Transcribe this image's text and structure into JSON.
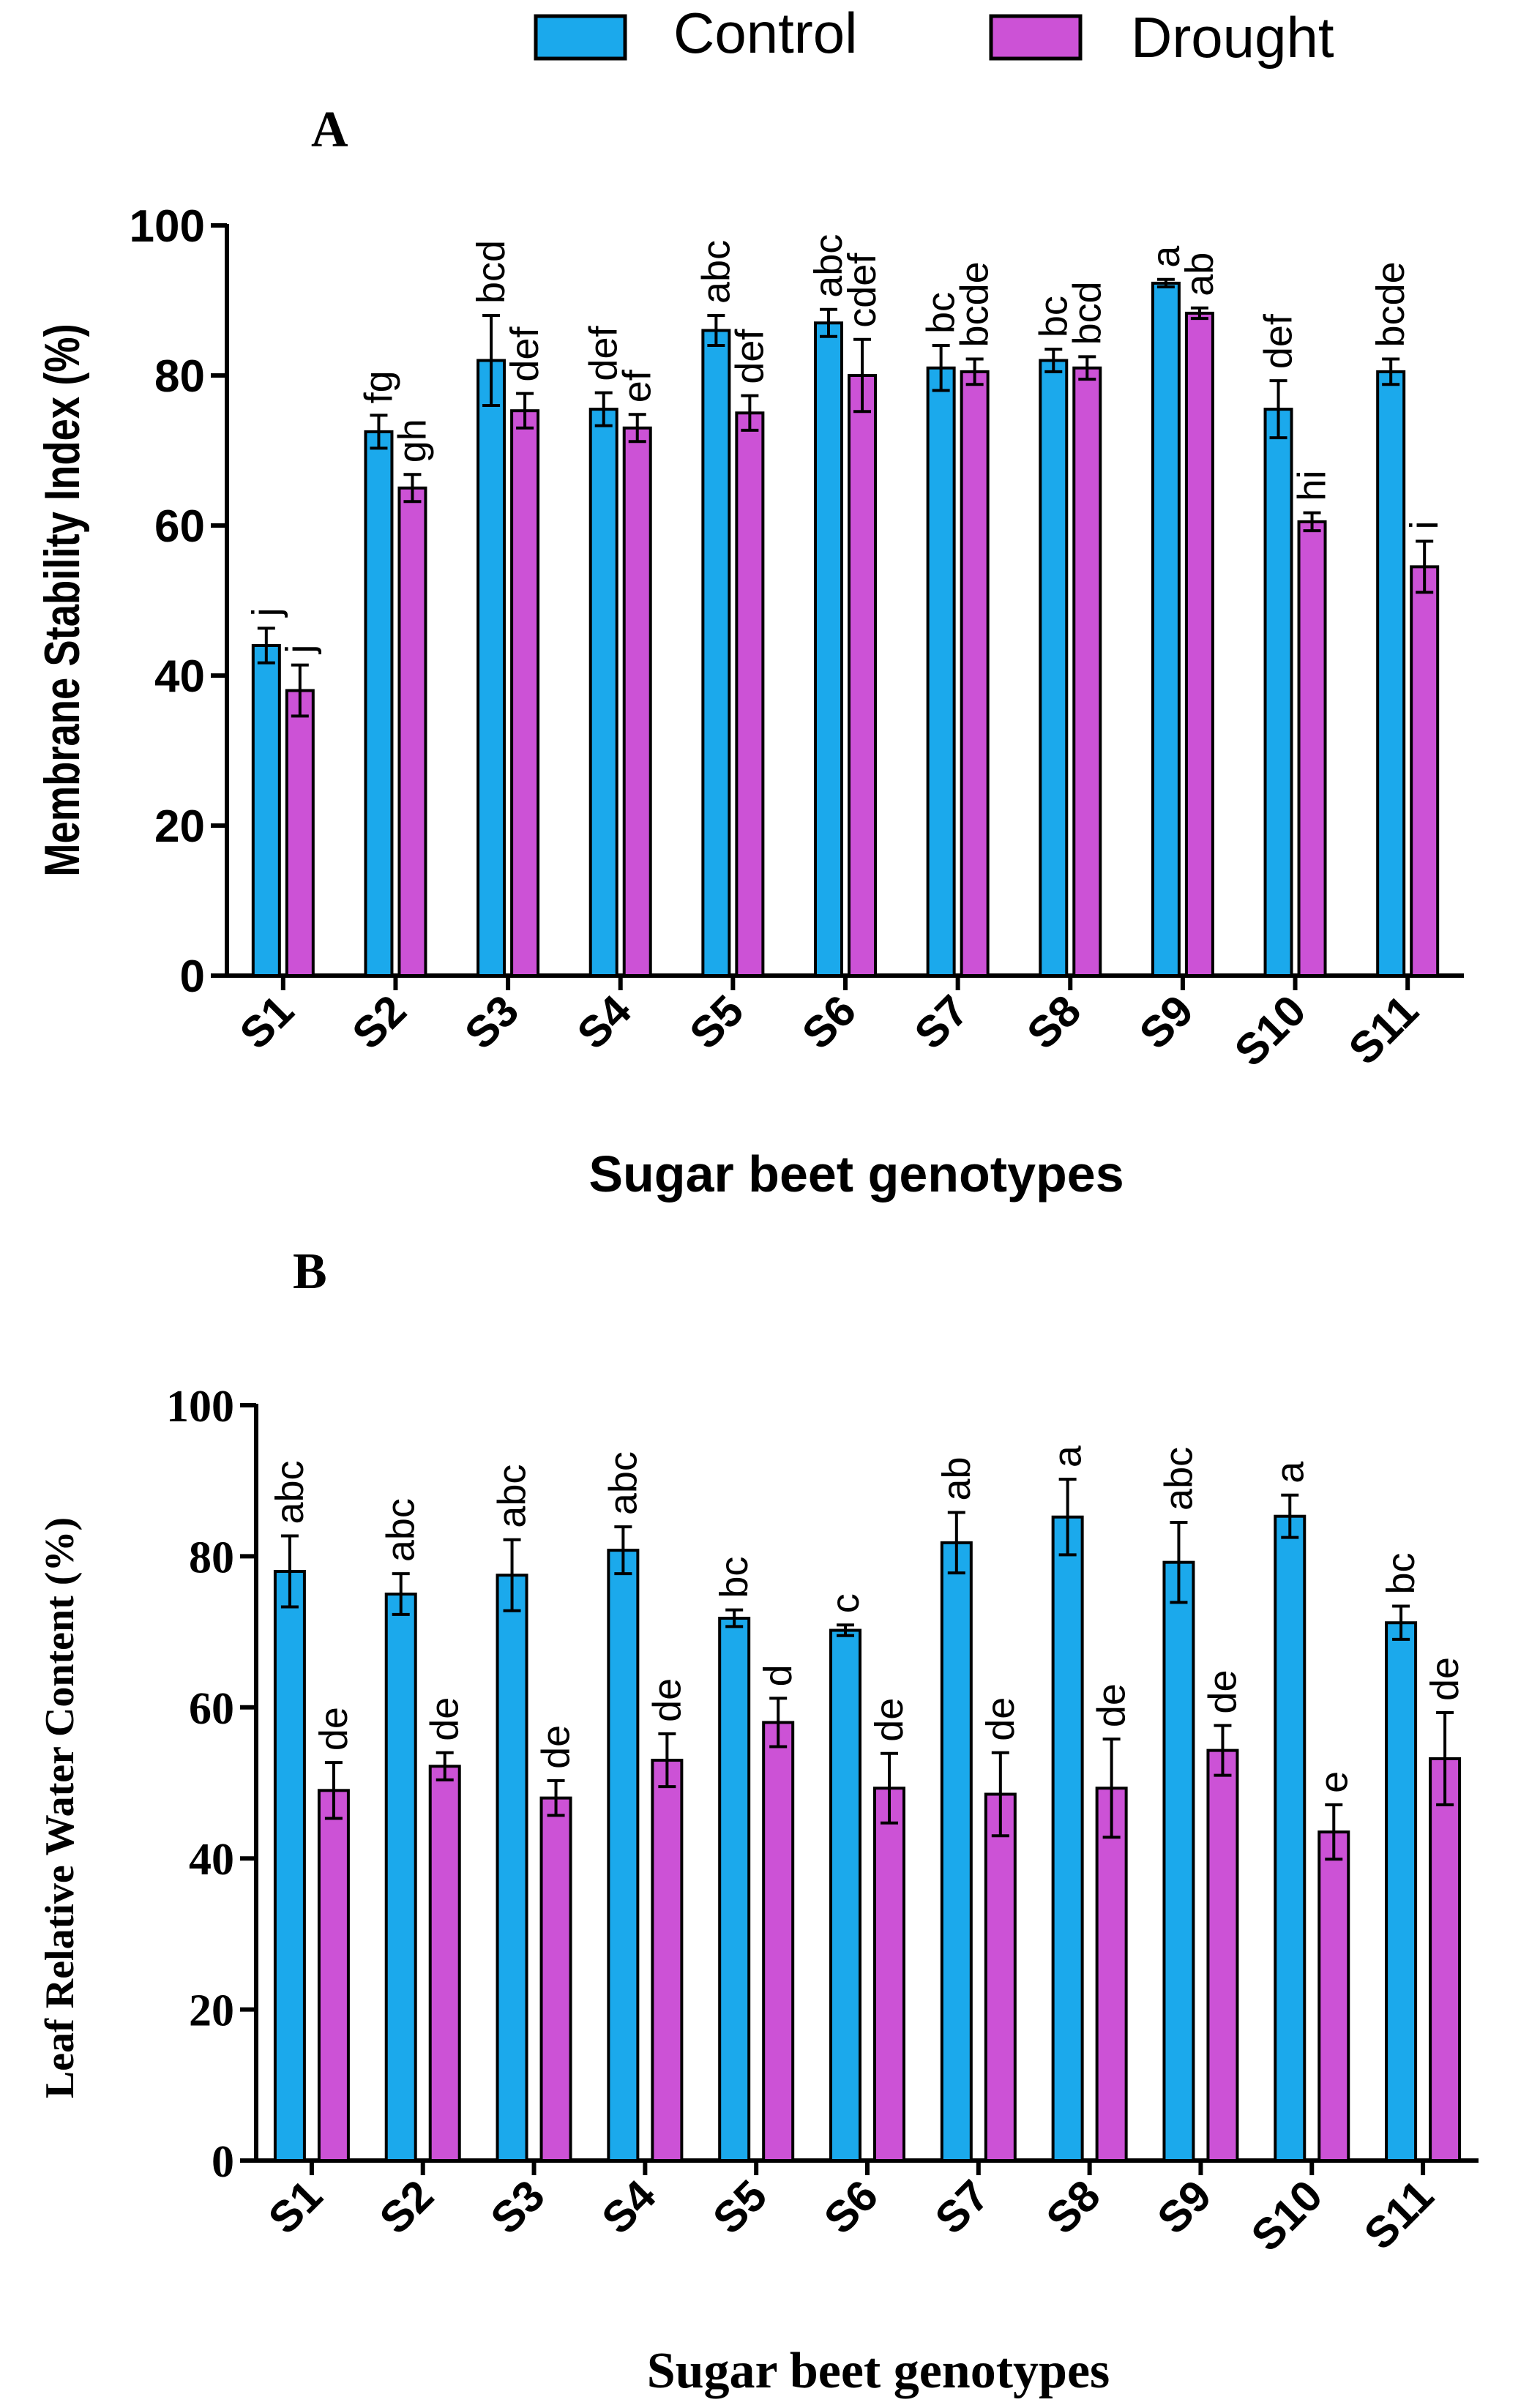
{
  "legend": {
    "items": [
      {
        "label": "Control",
        "color": "#1ba9ec"
      },
      {
        "label": "Drought",
        "color": "#cc52d6"
      }
    ]
  },
  "chart_data": [
    {
      "panel_label": "A",
      "type": "bar",
      "title": "",
      "xlabel": "Sugar beet genotypes",
      "ylabel": "Membrane Stability Index (%)",
      "ylim": [
        0,
        100
      ],
      "yticks": [
        "0",
        "20",
        "40",
        "60",
        "80",
        "100"
      ],
      "categories": [
        "S1",
        "S2",
        "S3",
        "S4",
        "S5",
        "S6",
        "S7",
        "S8",
        "S9",
        "S10",
        "S11"
      ],
      "series": [
        {
          "name": "Control",
          "values": [
            44,
            72.5,
            82,
            75.5,
            86,
            87,
            81,
            82,
            92.3,
            75.5,
            80.5
          ],
          "errors": [
            2.3,
            2.2,
            6,
            2.2,
            2,
            1.8,
            3,
            1.5,
            0.5,
            3.8,
            1.7
          ],
          "letters": [
            "j",
            "fg",
            "bcd",
            "def",
            "abc",
            "abc",
            "bc",
            "bc",
            "a",
            "def",
            "bcde"
          ]
        },
        {
          "name": "Drought",
          "values": [
            38,
            65,
            75.3,
            73,
            75,
            80,
            80.5,
            81,
            88.3,
            60.5,
            54.5
          ],
          "errors": [
            3.4,
            1.8,
            2.3,
            1.8,
            2.3,
            4.8,
            1.7,
            1.5,
            0.7,
            1.2,
            3.4
          ],
          "letters": [
            "j",
            "gh",
            "def",
            "ef",
            "def",
            "cdef",
            "bcde",
            "bcd",
            "ab",
            "hi",
            "i"
          ]
        }
      ]
    },
    {
      "panel_label": "B",
      "type": "bar",
      "title": "",
      "xlabel": "Sugar beet genotypes",
      "ylabel": "Leaf Relative Water Content (%)",
      "ylim": [
        0,
        100
      ],
      "yticks": [
        "0",
        "20",
        "40",
        "60",
        "80",
        "100"
      ],
      "categories": [
        "S1",
        "S2",
        "S3",
        "S4",
        "S5",
        "S6",
        "S7",
        "S8",
        "S9",
        "S10",
        "S11"
      ],
      "series": [
        {
          "name": "Control",
          "values": [
            78,
            75,
            77.5,
            80.8,
            71.8,
            70.2,
            81.8,
            85.2,
            79.2,
            85.3,
            71.2
          ],
          "errors": [
            4.7,
            2.7,
            4.7,
            3.1,
            1.1,
            0.7,
            4,
            5,
            5.3,
            2.8,
            2.2
          ],
          "letters": [
            "abc",
            "abc",
            "abc",
            "abc",
            "bc",
            "c",
            "ab",
            "a",
            "abc",
            "a",
            "bc"
          ]
        },
        {
          "name": "Drought",
          "values": [
            49,
            52.2,
            48,
            53,
            58,
            49.3,
            48.5,
            49.3,
            54.3,
            43.5,
            53.2
          ],
          "errors": [
            3.7,
            1.8,
            2.3,
            3.5,
            3.2,
            4.6,
            5.5,
            6.5,
            3.3,
            3.6,
            6.1
          ],
          "letters": [
            "de",
            "de",
            "de",
            "de",
            "d",
            "de",
            "de",
            "de",
            "de",
            "e",
            "de"
          ]
        }
      ]
    }
  ]
}
